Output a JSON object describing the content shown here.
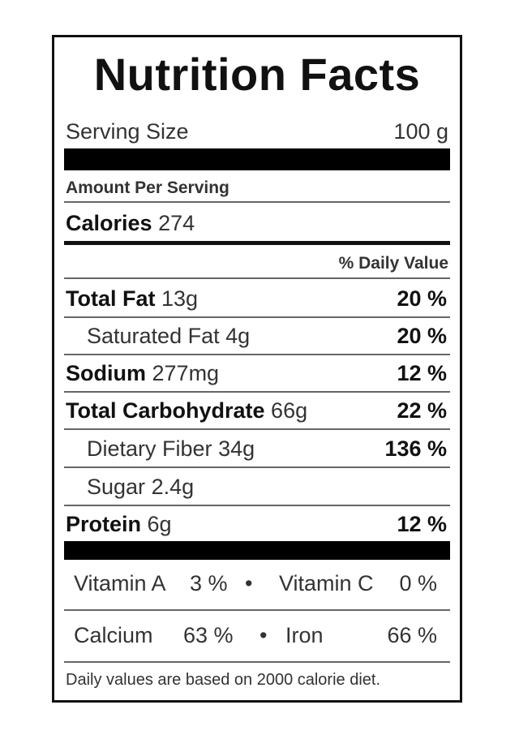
{
  "title": "Nutrition Facts",
  "serving": {
    "label": "Serving Size",
    "value": "100 g"
  },
  "amount_per_serving": "Amount Per Serving",
  "calories": {
    "label": "Calories",
    "value": "274"
  },
  "daily_value_header": "% Daily Value",
  "nutrients": [
    {
      "label": "Total Fat",
      "amount": "13g",
      "dv": "20 %"
    },
    {
      "label": "Saturated Fat",
      "amount": "4g",
      "dv": "20 %"
    },
    {
      "label": "Sodium",
      "amount": "277mg",
      "dv": "12 %"
    },
    {
      "label": "Total Carbohydrate",
      "amount": "66g",
      "dv": "22 %"
    },
    {
      "label": "Dietary Fiber",
      "amount": "34g",
      "dv": "136 %"
    },
    {
      "label": "Sugar",
      "amount": "2.4g",
      "dv": ""
    },
    {
      "label": "Protein",
      "amount": "6g",
      "dv": "12 %"
    }
  ],
  "vitamins": {
    "vitamin_a": {
      "label": "Vitamin A",
      "value": "3 %"
    },
    "vitamin_c": {
      "label": "Vitamin C",
      "value": "0 %"
    },
    "calcium": {
      "label": "Calcium",
      "value": "63 %"
    },
    "iron": {
      "label": "Iron",
      "value": "66 %"
    },
    "separator": "•"
  },
  "footer": "Daily values are based on 2000 calorie diet."
}
